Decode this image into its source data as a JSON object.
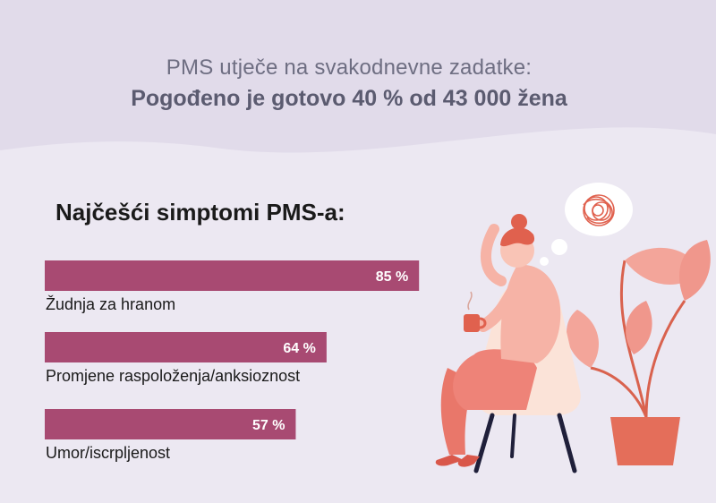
{
  "header": {
    "subtitle": "PMS utječe na svakodnevne zadatke:",
    "title": "Pogođeno je gotovo 40 % od 43 000 žena"
  },
  "chart_heading": "Najčešći simptomi PMS-a:",
  "colors": {
    "bar": "#a84a72",
    "bar_label": "#ffffff",
    "category_label": "#1a1a1a",
    "background_top": "#e3ddec",
    "background_bottom": "#ece8f2"
  },
  "chart_data": {
    "type": "bar",
    "orientation": "horizontal",
    "title": "Najčešći simptomi PMS-a:",
    "categories": [
      "Žudnja za hranom",
      "Promjene raspoloženja/anksioznost",
      "Umor/iscrpljenost"
    ],
    "values": [
      85,
      64,
      57
    ],
    "value_labels": [
      "85 %",
      "64 %",
      "57 %"
    ],
    "xlim": [
      0,
      100
    ],
    "grid": false,
    "legend": "none"
  },
  "illustration": {
    "icons": [
      "woman-sitting-icon",
      "thought-bubble-icon",
      "scribble-icon",
      "coffee-mug-icon",
      "potted-plant-icon",
      "chair-icon"
    ]
  }
}
